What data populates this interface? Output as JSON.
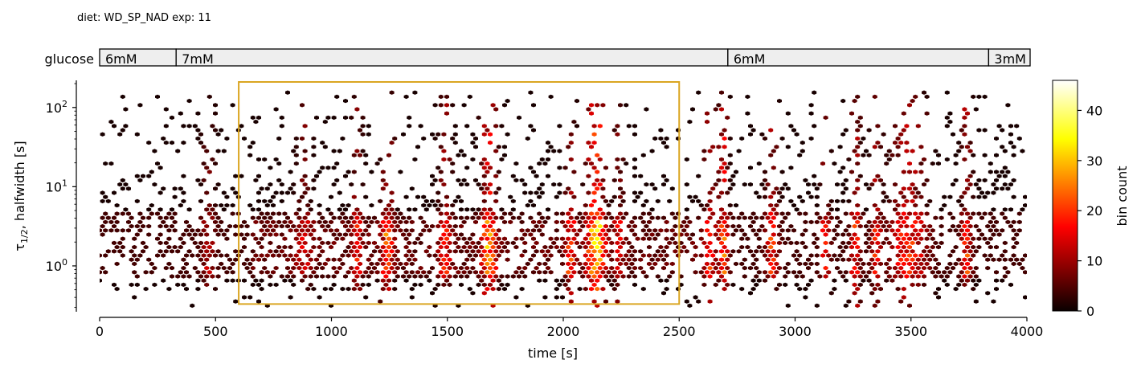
{
  "header": {
    "caption": "diet: WD_SP_NAD  exp: 11"
  },
  "glucose_bar": {
    "label": "glucose",
    "segments": [
      {
        "label": "6mM",
        "start": 0,
        "end": 330
      },
      {
        "label": "7mM",
        "start": 330,
        "end": 2710
      },
      {
        "label": "6mM",
        "start": 2710,
        "end": 3835
      },
      {
        "label": "3mM",
        "start": 3835,
        "end": 4020
      }
    ],
    "fill_color": "#eeeeee"
  },
  "chart_data": {
    "type": "heatmap",
    "subtype": "hexbin",
    "xlabel": "time [s]",
    "ylabel_main": "τ",
    "ylabel_sub": "1/2",
    "ylabel_rest": ", halfwidth [s]",
    "xlim": [
      0,
      4000
    ],
    "ylim": [
      0.27,
      220
    ],
    "yscale": "log",
    "x_ticks": [
      0,
      500,
      1000,
      1500,
      2000,
      2500,
      3000,
      3500,
      4000
    ],
    "x_tick_labels": [
      "0",
      "500",
      "1000",
      "1500",
      "2000",
      "2500",
      "3000",
      "3500",
      "4000"
    ],
    "y_ticks": [
      1,
      10,
      100
    ],
    "y_tick_labels": [
      {
        "base": "10",
        "exp": "0"
      },
      {
        "base": "10",
        "exp": "1"
      },
      {
        "base": "10",
        "exp": "2"
      }
    ],
    "highlight_box": {
      "x0": 600,
      "x1": 2500,
      "y0": 0.33,
      "y1": 210,
      "color": "#daa520"
    },
    "colorbar": {
      "label": "bin count",
      "range": [
        0,
        46
      ],
      "ticks": [
        0,
        10,
        20,
        30,
        40
      ],
      "tick_labels": [
        "0",
        "10",
        "20",
        "30",
        "40"
      ],
      "colormap": "hot"
    },
    "density": {
      "columns": [
        {
          "x": 470,
          "w": 25,
          "weight": 0.3
        },
        {
          "x": 880,
          "w": 30,
          "weight": 0.3
        },
        {
          "x": 1110,
          "w": 20,
          "weight": 0.45
        },
        {
          "x": 1240,
          "w": 25,
          "weight": 0.6
        },
        {
          "x": 1490,
          "w": 25,
          "weight": 0.45
        },
        {
          "x": 1680,
          "w": 30,
          "weight": 0.75
        },
        {
          "x": 2030,
          "w": 20,
          "weight": 0.5
        },
        {
          "x": 2140,
          "w": 35,
          "weight": 1.0
        },
        {
          "x": 2240,
          "w": 20,
          "weight": 0.35
        },
        {
          "x": 2630,
          "w": 25,
          "weight": 0.5
        },
        {
          "x": 2690,
          "w": 20,
          "weight": 0.7
        },
        {
          "x": 2900,
          "w": 25,
          "weight": 0.55
        },
        {
          "x": 3130,
          "w": 20,
          "weight": 0.45
        },
        {
          "x": 3260,
          "w": 20,
          "weight": 0.55
        },
        {
          "x": 3350,
          "w": 20,
          "weight": 0.5
        },
        {
          "x": 3490,
          "w": 70,
          "weight": 0.55
        },
        {
          "x": 3740,
          "w": 20,
          "weight": 0.55
        }
      ]
    }
  },
  "colors": {
    "axis": "#000000",
    "highlight": "#daa520"
  }
}
